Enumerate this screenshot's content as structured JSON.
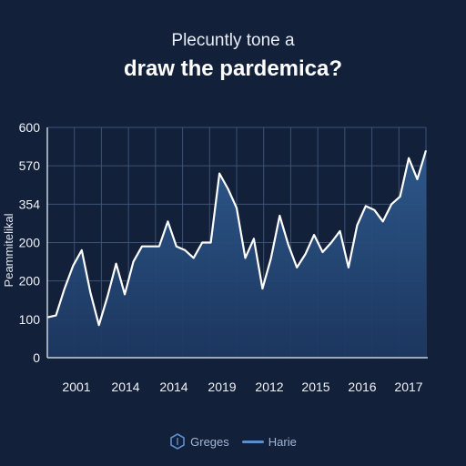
{
  "chart_data": {
    "type": "area",
    "title": "draw the pardemica?",
    "subtitle": "Plecuntly tone a",
    "xlabel": "",
    "ylabel": "Peammitelikal",
    "y_tick_labels": [
      "0",
      "100",
      "200",
      "200",
      "354",
      "570",
      "600"
    ],
    "x_tick_labels": [
      "2001",
      "2014",
      "2014",
      "2019",
      "2012",
      "2015",
      "2016",
      "2017"
    ],
    "ylim": [
      0,
      6
    ],
    "grid": true,
    "legend_position": "bottom",
    "legend": [
      {
        "label": "Greges",
        "marker": "hexagon-outline"
      },
      {
        "label": "Harie",
        "marker": "line"
      }
    ],
    "series": [
      {
        "values": [
          1.05,
          1.1,
          1.8,
          2.4,
          2.8,
          1.7,
          0.85,
          1.6,
          2.45,
          1.65,
          2.5,
          2.9,
          2.9,
          2.9,
          3.55,
          2.9,
          2.8,
          2.6,
          3.0,
          3.0,
          4.8,
          4.4,
          3.9,
          2.6,
          3.1,
          1.8,
          2.6,
          3.7,
          2.95,
          2.35,
          2.7,
          3.2,
          2.75,
          3.0,
          3.3,
          2.35,
          3.45,
          3.95,
          3.85,
          3.55,
          4.0,
          4.2,
          5.2,
          4.65,
          5.4
        ]
      }
    ],
    "colors": {
      "background": "#13203a",
      "line": "#ffffff",
      "fill": "#2a5080",
      "grid": "#3a5276",
      "axis": "#c8d2e0",
      "legend_text": "#9fb6d6",
      "legend_icon": "#5d8fcc"
    }
  }
}
